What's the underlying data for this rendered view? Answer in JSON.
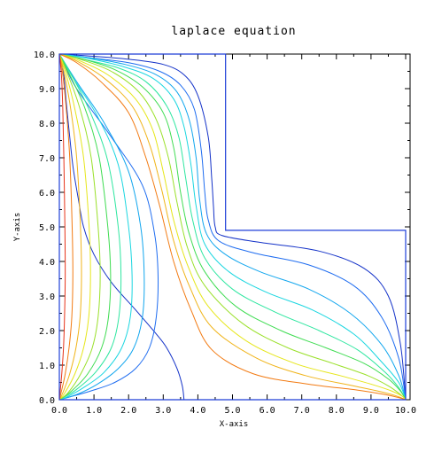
{
  "chart_data": {
    "type": "line",
    "title": "laplace equation",
    "xlabel": "X-axis",
    "ylabel": "Y-axis",
    "xlim": [
      0.0,
      10.0
    ],
    "ylim": [
      0.0,
      10.0
    ],
    "xticks": [
      "0.0",
      "1.0",
      "2.0",
      "3.0",
      "4.0",
      "5.0",
      "6.0",
      "7.0",
      "8.0",
      "9.0",
      "10.0"
    ],
    "yticks": [
      "0.0",
      "1.0",
      "2.0",
      "3.0",
      "4.0",
      "5.0",
      "6.0",
      "7.0",
      "8.0",
      "9.0",
      "10.0"
    ],
    "grid": false,
    "colors": {
      "boundary": "#1f3fd8",
      "contours": [
        "#1432c8",
        "#1e6cf0",
        "#12a6ee",
        "#1ad6e0",
        "#2ee6a0",
        "#3fdc52",
        "#9ae02a",
        "#e6e61a",
        "#f0b41a",
        "#f27a12",
        "#e6321a"
      ]
    },
    "domain_boundary": {
      "x": [
        0.0,
        4.8,
        4.8,
        10.0,
        10.0,
        0.0,
        0.0
      ],
      "y": [
        10.0,
        10.0,
        4.9,
        4.9,
        0.0,
        0.0,
        10.0
      ]
    },
    "series": [
      {
        "x": [
          0.05,
          0.1,
          0.15,
          0.2,
          0.3,
          0.4,
          0.55,
          0.7,
          1.0,
          1.5,
          2.2,
          2.8,
          3.1,
          3.4,
          3.55,
          3.6
        ],
        "y": [
          9.9,
          9.6,
          9.2,
          8.6,
          7.6,
          6.7,
          5.8,
          5.0,
          4.2,
          3.4,
          2.6,
          1.9,
          1.5,
          0.9,
          0.4,
          0.0
        ]
      },
      {
        "x": [
          0.0,
          0.5,
          1.5,
          2.4,
          2.75,
          2.85,
          2.8,
          2.6,
          2.2,
          1.6,
          0.9,
          0.3,
          0.0
        ],
        "y": [
          10.0,
          9.0,
          7.6,
          6.2,
          4.8,
          3.6,
          2.4,
          1.5,
          0.9,
          0.5,
          0.25,
          0.08,
          0.0
        ]
      },
      {
        "x": [
          0.0,
          0.5,
          1.3,
          2.0,
          2.35,
          2.45,
          2.4,
          2.15,
          1.7,
          1.1,
          0.5,
          0.0
        ],
        "y": [
          10.0,
          9.2,
          8.0,
          6.6,
          5.0,
          3.6,
          2.4,
          1.5,
          0.9,
          0.45,
          0.15,
          0.0
        ]
      },
      {
        "x": [
          0.0,
          0.4,
          1.1,
          1.7,
          2.0,
          2.1,
          2.05,
          1.8,
          1.3,
          0.7,
          0.2,
          0.0
        ],
        "y": [
          10.0,
          9.3,
          8.2,
          6.8,
          5.0,
          3.6,
          2.4,
          1.5,
          0.8,
          0.35,
          0.07,
          0.0
        ]
      },
      {
        "x": [
          0.0,
          0.35,
          0.9,
          1.4,
          1.7,
          1.78,
          1.72,
          1.5,
          1.05,
          0.5,
          0.1,
          0.0
        ],
        "y": [
          10.0,
          9.4,
          8.3,
          6.9,
          5.0,
          3.6,
          2.4,
          1.5,
          0.8,
          0.3,
          0.05,
          0.0
        ]
      },
      {
        "x": [
          0.0,
          0.3,
          0.75,
          1.15,
          1.4,
          1.48,
          1.42,
          1.22,
          0.82,
          0.35,
          0.0
        ],
        "y": [
          10.0,
          9.4,
          8.4,
          7.0,
          5.0,
          3.6,
          2.4,
          1.5,
          0.75,
          0.25,
          0.0
        ]
      },
      {
        "x": [
          0.0,
          0.25,
          0.6,
          0.92,
          1.12,
          1.18,
          1.12,
          0.95,
          0.62,
          0.25,
          0.0
        ],
        "y": [
          10.0,
          9.4,
          8.4,
          7.0,
          5.0,
          3.6,
          2.4,
          1.5,
          0.75,
          0.2,
          0.0
        ]
      },
      {
        "x": [
          0.0,
          0.2,
          0.45,
          0.7,
          0.86,
          0.9,
          0.85,
          0.7,
          0.45,
          0.16,
          0.0
        ],
        "y": [
          10.0,
          9.4,
          8.4,
          7.0,
          5.0,
          3.6,
          2.4,
          1.5,
          0.75,
          0.2,
          0.0
        ]
      },
      {
        "x": [
          0.0,
          0.15,
          0.33,
          0.5,
          0.61,
          0.64,
          0.6,
          0.48,
          0.3,
          0.1,
          0.0
        ],
        "y": [
          10.0,
          9.4,
          8.4,
          7.0,
          5.0,
          3.6,
          2.4,
          1.5,
          0.75,
          0.2,
          0.0
        ]
      },
      {
        "x": [
          0.0,
          0.1,
          0.2,
          0.3,
          0.37,
          0.39,
          0.36,
          0.28,
          0.17,
          0.05,
          0.0
        ],
        "y": [
          10.0,
          9.4,
          8.4,
          7.0,
          5.0,
          3.6,
          2.4,
          1.5,
          0.75,
          0.2,
          0.0
        ]
      },
      {
        "x": [
          0.0,
          0.06,
          0.1,
          0.13,
          0.16,
          0.17,
          0.15,
          0.12,
          0.07,
          0.02,
          0.0
        ],
        "y": [
          10.0,
          9.4,
          8.4,
          7.0,
          5.0,
          3.6,
          2.4,
          1.5,
          0.75,
          0.2,
          0.0
        ]
      },
      {
        "x": [
          0.0,
          0.8,
          2.0,
          3.0,
          3.6,
          4.0,
          4.3,
          4.4,
          4.45,
          4.5,
          4.7,
          5.8,
          7.5,
          8.8,
          9.5,
          9.85,
          10.0
        ],
        "y": [
          10.0,
          9.95,
          9.85,
          9.7,
          9.4,
          8.8,
          7.6,
          6.4,
          5.6,
          5.0,
          4.75,
          4.55,
          4.3,
          3.8,
          3.0,
          1.6,
          0.0
        ]
      },
      {
        "x": [
          0.0,
          0.8,
          2.0,
          2.9,
          3.5,
          3.9,
          4.1,
          4.2,
          4.3,
          4.6,
          5.6,
          7.2,
          8.5,
          9.3,
          9.8,
          10.0
        ],
        "y": [
          10.0,
          9.9,
          9.75,
          9.5,
          9.1,
          8.4,
          7.2,
          6.0,
          5.2,
          4.6,
          4.25,
          3.9,
          3.3,
          2.4,
          1.2,
          0.0
        ]
      },
      {
        "x": [
          0.0,
          0.8,
          1.9,
          2.8,
          3.4,
          3.75,
          3.95,
          4.05,
          4.25,
          4.8,
          5.8,
          7.2,
          8.4,
          9.3,
          9.8,
          10.0
        ],
        "y": [
          10.0,
          9.9,
          9.7,
          9.4,
          8.9,
          8.1,
          7.0,
          5.8,
          4.8,
          4.2,
          3.7,
          3.2,
          2.5,
          1.6,
          0.7,
          0.0
        ]
      },
      {
        "x": [
          0.0,
          0.7,
          1.8,
          2.7,
          3.3,
          3.6,
          3.8,
          3.95,
          4.2,
          4.9,
          6.0,
          7.3,
          8.5,
          9.3,
          9.8,
          10.0
        ],
        "y": [
          10.0,
          9.9,
          9.65,
          9.3,
          8.7,
          7.9,
          6.8,
          5.6,
          4.5,
          3.7,
          3.1,
          2.6,
          1.9,
          1.1,
          0.5,
          0.0
        ]
      },
      {
        "x": [
          0.0,
          0.7,
          1.7,
          2.5,
          3.1,
          3.45,
          3.65,
          3.85,
          4.2,
          5.0,
          6.2,
          7.5,
          8.6,
          9.4,
          9.8,
          10.0
        ],
        "y": [
          10.0,
          9.85,
          9.6,
          9.2,
          8.5,
          7.6,
          6.4,
          5.2,
          4.1,
          3.2,
          2.55,
          2.0,
          1.45,
          0.8,
          0.35,
          0.0
        ]
      },
      {
        "x": [
          0.0,
          0.7,
          1.6,
          2.4,
          3.0,
          3.3,
          3.5,
          3.75,
          4.2,
          5.1,
          6.4,
          7.7,
          8.8,
          9.5,
          9.85,
          10.0
        ],
        "y": [
          10.0,
          9.85,
          9.55,
          9.05,
          8.3,
          7.3,
          6.0,
          4.8,
          3.7,
          2.7,
          2.0,
          1.5,
          1.05,
          0.6,
          0.25,
          0.0
        ]
      },
      {
        "x": [
          0.0,
          0.6,
          1.5,
          2.3,
          2.8,
          3.15,
          3.4,
          3.7,
          4.2,
          5.3,
          6.6,
          7.9,
          8.9,
          9.5,
          9.85,
          10.0
        ],
        "y": [
          10.0,
          9.85,
          9.5,
          8.9,
          8.1,
          7.0,
          5.7,
          4.4,
          3.3,
          2.2,
          1.5,
          1.05,
          0.7,
          0.4,
          0.15,
          0.0
        ]
      },
      {
        "x": [
          0.0,
          0.6,
          1.4,
          2.2,
          2.7,
          3.0,
          3.3,
          3.7,
          4.3,
          5.4,
          6.8,
          8.1,
          9.0,
          9.6,
          9.9,
          10.0
        ],
        "y": [
          10.0,
          9.8,
          9.4,
          8.7,
          7.8,
          6.6,
          5.2,
          3.9,
          2.7,
          1.7,
          1.05,
          0.7,
          0.45,
          0.25,
          0.1,
          0.0
        ]
      },
      {
        "x": [
          0.0,
          0.5,
          1.3,
          2.1,
          2.6,
          2.95,
          3.3,
          3.75,
          4.4,
          5.7,
          7.1,
          8.4,
          9.2,
          9.7,
          10.0
        ],
        "y": [
          10.0,
          9.8,
          9.3,
          8.5,
          7.4,
          6.1,
          4.6,
          3.3,
          2.1,
          1.2,
          0.7,
          0.42,
          0.25,
          0.12,
          0.0
        ]
      },
      {
        "x": [
          0.0,
          0.5,
          1.2,
          2.0,
          2.5,
          2.9,
          3.3,
          3.8,
          4.4,
          5.6,
          7.2,
          8.6,
          9.4,
          9.8,
          10.0
        ],
        "y": [
          10.0,
          9.75,
          9.2,
          8.3,
          7.0,
          5.6,
          4.0,
          2.6,
          1.45,
          0.75,
          0.45,
          0.28,
          0.15,
          0.06,
          0.0
        ]
      }
    ]
  }
}
